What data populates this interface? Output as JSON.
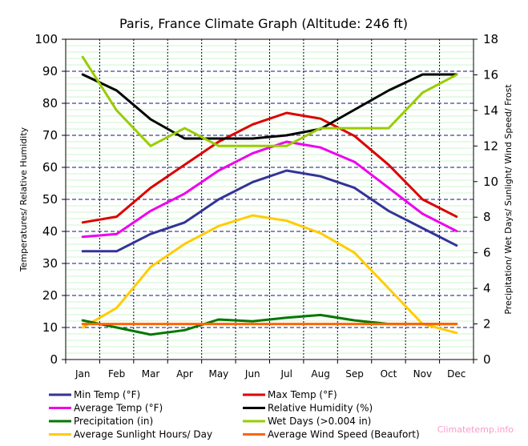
{
  "chart_data": {
    "type": "line",
    "title": "Paris, France Climate Graph (Altitude: 246 ft)",
    "ylabel_left": "Temperatures/ Relative Humidity",
    "ylabel_right": "Precipitation/ Wet Days/ Sunlight/ Wind Speed/ Frost",
    "categories": [
      "Jan",
      "Feb",
      "Mar",
      "Apr",
      "May",
      "Jun",
      "Jul",
      "Aug",
      "Sep",
      "Oct",
      "Nov",
      "Dec"
    ],
    "ylim_left": [
      0,
      100
    ],
    "yticks_left": [
      0,
      10,
      20,
      30,
      40,
      50,
      60,
      70,
      80,
      90,
      100
    ],
    "ylim_right": [
      0,
      18
    ],
    "yticks_right": [
      0,
      2,
      4,
      6,
      8,
      10,
      12,
      14,
      16,
      18
    ],
    "grid": true,
    "legend_position": "bottom",
    "series": [
      {
        "name": "Min Temp (°F)",
        "axis": "left",
        "color": "#333399",
        "values": [
          33.8,
          33.8,
          39.2,
          42.8,
          50.0,
          55.4,
          59.0,
          57.2,
          53.6,
          46.4,
          41.0,
          35.6
        ]
      },
      {
        "name": "Max Temp (°F)",
        "axis": "left",
        "color": "#dd0000",
        "values": [
          42.8,
          44.6,
          53.6,
          60.8,
          68.0,
          73.4,
          77.0,
          75.2,
          69.8,
          60.8,
          50.0,
          44.6
        ]
      },
      {
        "name": "Average Temp (°F)",
        "axis": "left",
        "color": "#ee00ee",
        "values": [
          38.3,
          39.2,
          46.4,
          51.8,
          59.0,
          64.4,
          68.0,
          66.2,
          61.7,
          53.6,
          45.5,
          40.1
        ]
      },
      {
        "name": "Relative Humidity (%)",
        "axis": "left",
        "color": "#000000",
        "values": [
          89,
          84,
          75,
          69,
          69,
          69,
          70,
          72,
          78,
          84,
          89,
          89
        ]
      },
      {
        "name": "Precipitation (in)",
        "axis": "right",
        "color": "#007700",
        "values": [
          2.2,
          1.8,
          1.4,
          1.65,
          2.25,
          2.15,
          2.35,
          2.5,
          2.2,
          2.0,
          2.0,
          2.0
        ]
      },
      {
        "name": "Wet Days (>0.004 in)",
        "axis": "right",
        "color": "#99cc00",
        "values": [
          17,
          14,
          12,
          13,
          12,
          12,
          12,
          13,
          13,
          13,
          15,
          16
        ]
      },
      {
        "name": "Average Sunlight Hours/ Day",
        "axis": "right",
        "color": "#ffcc00",
        "values": [
          1.8,
          2.9,
          5.2,
          6.5,
          7.5,
          8.1,
          7.8,
          7.1,
          6.0,
          4.0,
          2.0,
          1.5
        ]
      },
      {
        "name": "Average Wind Speed (Beaufort)",
        "axis": "right",
        "color": "#ff6600",
        "values": [
          2,
          2,
          2,
          2,
          2,
          2,
          2,
          2,
          2,
          2,
          2,
          2
        ]
      }
    ]
  },
  "watermark": "Climatetemp.info"
}
